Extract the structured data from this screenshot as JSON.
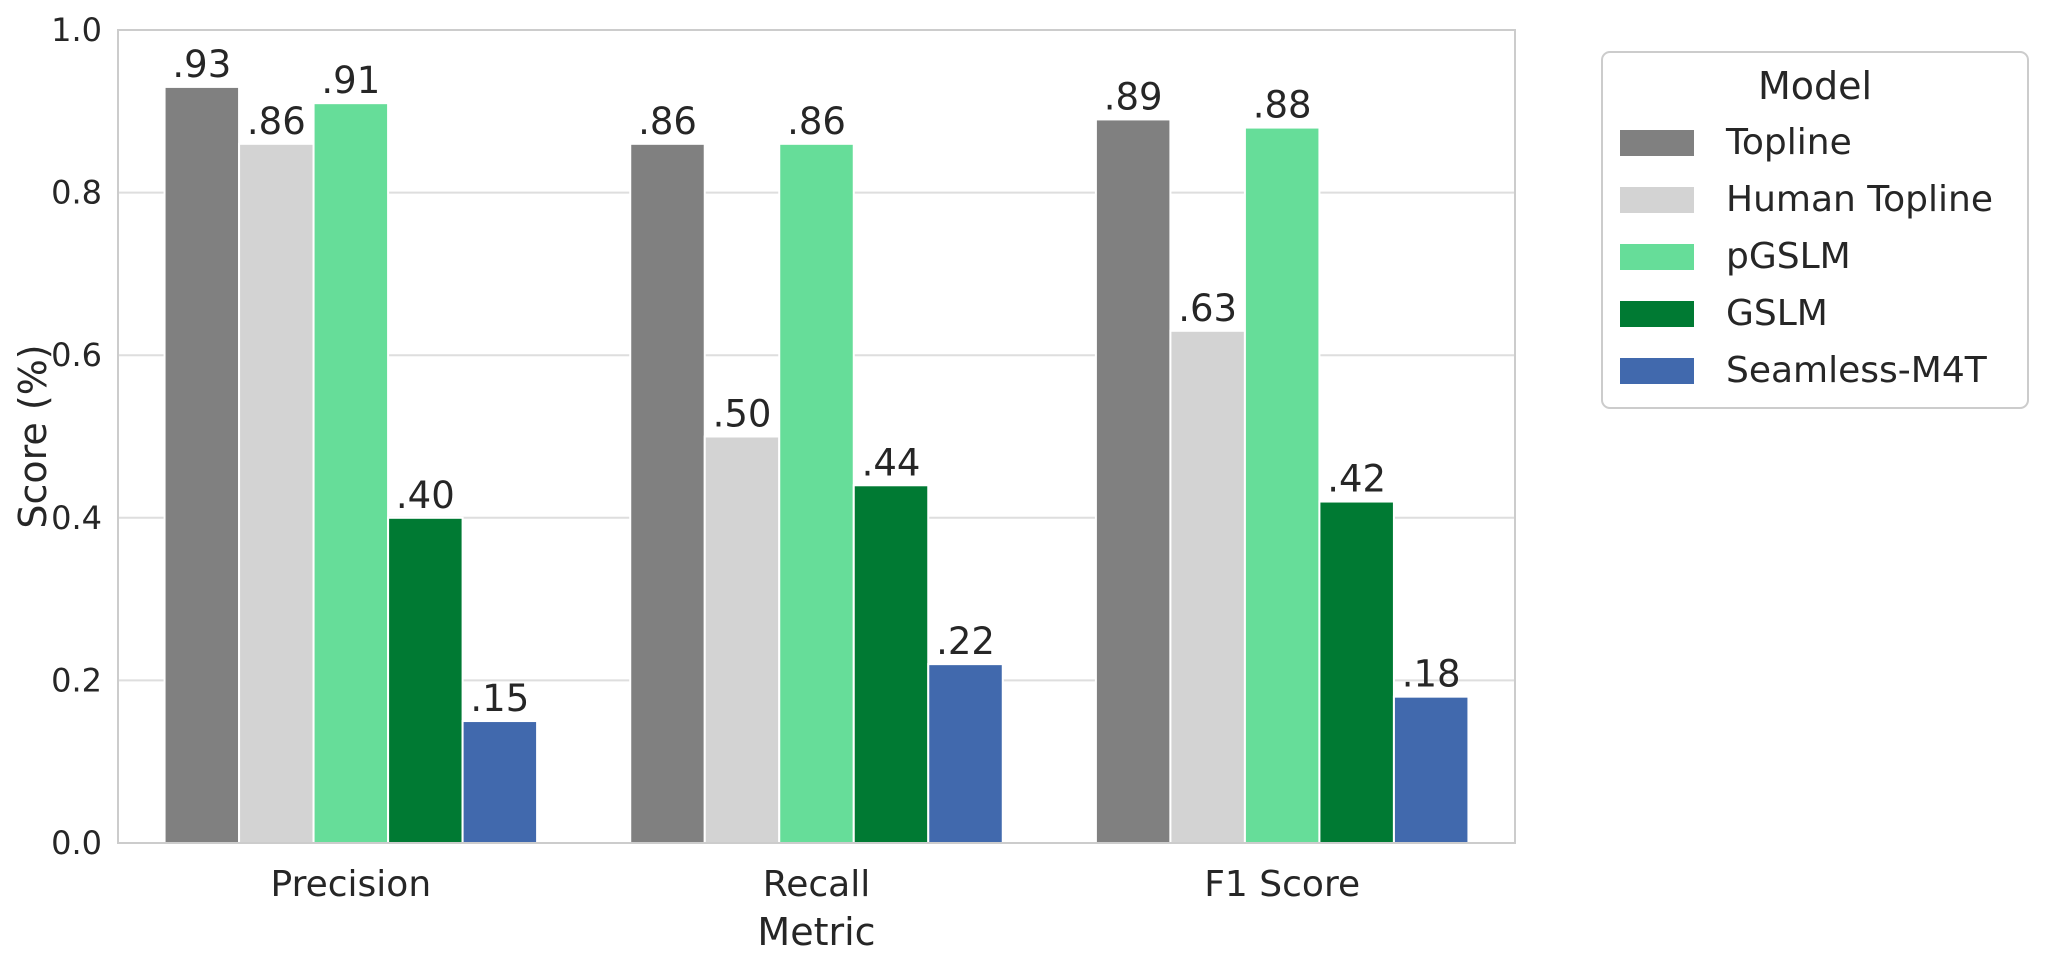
{
  "chart_data": {
    "type": "bar",
    "xlabel": "Metric",
    "ylabel": "Score (%)",
    "ylim": [
      0,
      1.0
    ],
    "yticks": [
      0.0,
      0.2,
      0.4,
      0.6,
      0.8,
      1.0
    ],
    "ytick_labels": [
      "0.0",
      "0.2",
      "0.4",
      "0.6",
      "0.8",
      "1.0"
    ],
    "grid": true,
    "legend_placement": "outside-right-top",
    "legend_title": "Model",
    "categories": [
      "Precision",
      "Recall",
      "F1 Score"
    ],
    "series": [
      {
        "name": "Topline",
        "values": [
          0.93,
          0.86,
          0.89
        ],
        "labels": [
          ".93",
          ".86",
          ".89"
        ],
        "color": "#808080"
      },
      {
        "name": "Human Topline",
        "values": [
          0.86,
          0.5,
          0.63
        ],
        "labels": [
          ".86",
          ".50",
          ".63"
        ],
        "color": "#d3d3d3"
      },
      {
        "name": "pGSLM",
        "values": [
          0.91,
          0.86,
          0.88
        ],
        "labels": [
          ".91",
          ".86",
          ".88"
        ],
        "color": "#66dd99"
      },
      {
        "name": "GSLM",
        "values": [
          0.4,
          0.44,
          0.42
        ],
        "labels": [
          ".40",
          ".44",
          ".42"
        ],
        "color": "#007a33"
      },
      {
        "name": "Seamless-M4T",
        "values": [
          0.15,
          0.22,
          0.18
        ],
        "labels": [
          ".15",
          ".22",
          ".18"
        ],
        "color": "#4169ad"
      }
    ]
  }
}
